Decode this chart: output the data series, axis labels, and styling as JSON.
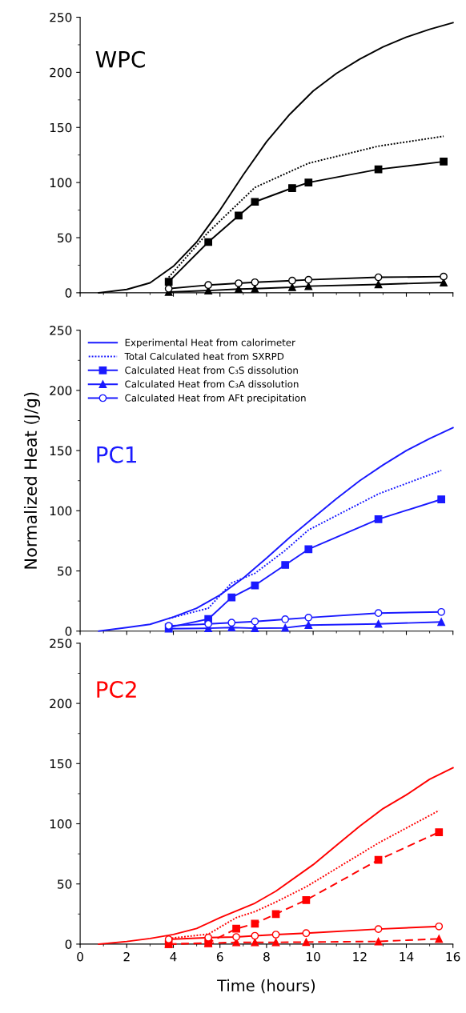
{
  "chart_data": [
    {
      "type": "line",
      "title": "WPC",
      "xlim": [
        0,
        16
      ],
      "ylim": [
        0,
        250
      ],
      "xticks": [
        0,
        2,
        4,
        6,
        8,
        10,
        12,
        14,
        16
      ],
      "yticks": [
        0,
        50,
        100,
        150,
        200,
        250
      ],
      "tick_labels": "y",
      "grid": false,
      "series": [
        {
          "color": "#000000",
          "line_style": "solid",
          "marker": "none",
          "x": [
            0.8,
            2,
            3,
            4,
            5,
            6,
            7,
            8,
            9,
            10,
            11,
            12,
            13,
            14,
            15,
            16
          ],
          "values": [
            0,
            3,
            9,
            24,
            46,
            75,
            107,
            137,
            162,
            183,
            199,
            212,
            223,
            232,
            239,
            245
          ]
        },
        {
          "color": "#000000",
          "line_style": "dotted",
          "marker": "none",
          "x": [
            3.8,
            5.5,
            7.5,
            9.8,
            12.8,
            15.6
          ],
          "values": [
            14,
            55,
            95.5,
            117.5,
            133,
            142
          ]
        },
        {
          "color": "#000000",
          "line_style": "solid",
          "marker": "square",
          "x": [
            3.8,
            5.5,
            6.8,
            7.5,
            9.1,
            9.8,
            12.8,
            15.6
          ],
          "values": [
            10,
            46,
            70,
            82.5,
            95,
            100,
            112,
            119
          ]
        },
        {
          "color": "#000000",
          "line_style": "solid",
          "marker": "triangle",
          "x": [
            3.8,
            5.5,
            6.8,
            7.5,
            9.1,
            9.8,
            12.8,
            15.6
          ],
          "values": [
            0.7,
            2,
            3.4,
            3.7,
            5,
            6,
            7.6,
            9.3
          ]
        },
        {
          "color": "#000000",
          "line_style": "solid",
          "marker": "circle",
          "x": [
            3.8,
            5.5,
            6.8,
            7.5,
            9.1,
            9.8,
            12.8,
            15.6
          ],
          "values": [
            3.7,
            7,
            8.6,
            9.5,
            11,
            11.8,
            14,
            14.7
          ]
        }
      ]
    },
    {
      "type": "line",
      "title": "PC1",
      "ylabel": "Normalized Heat (J/g)",
      "xlim": [
        0,
        16
      ],
      "ylim": [
        0,
        250
      ],
      "xticks": [
        0,
        2,
        4,
        6,
        8,
        10,
        12,
        14,
        16
      ],
      "yticks": [
        0,
        50,
        100,
        150,
        200,
        250
      ],
      "tick_labels": "y",
      "grid": false,
      "legend": "top left",
      "series": [
        {
          "name": "Experimental Heat from calorimeter",
          "color": "#1a1aff",
          "line_style": "solid",
          "marker": "none",
          "x": [
            0.8,
            2,
            3,
            4,
            5,
            6,
            7,
            8,
            9,
            10,
            11,
            12,
            13,
            14,
            15,
            16
          ],
          "values": [
            0,
            3,
            5.6,
            11.7,
            19,
            30,
            44,
            60.6,
            78,
            94,
            110,
            125,
            138,
            150,
            160,
            169
          ]
        },
        {
          "name": "Total Calculated heat from SXRPD",
          "color": "#1a1aff",
          "line_style": "dotted",
          "marker": "none",
          "x": [
            3.8,
            5.5,
            6.5,
            7.5,
            8.8,
            9.8,
            12.8,
            15.5
          ],
          "values": [
            10.5,
            19,
            40,
            48,
            67,
            84,
            114,
            133.5
          ]
        },
        {
          "name": "Calculated Heat from C₃S dissolution",
          "color": "#1a1aff",
          "line_style": "solid",
          "marker": "square",
          "x": [
            3.8,
            5.5,
            6.5,
            7.5,
            8.8,
            9.8,
            12.8,
            15.5
          ],
          "values": [
            3,
            10,
            28,
            38,
            55,
            68,
            93,
            109.5
          ]
        },
        {
          "name": "Calculated Heat from C₃A dissolution",
          "color": "#1a1aff",
          "line_style": "solid",
          "marker": "triangle",
          "x": [
            3.8,
            5.5,
            6.5,
            7.5,
            8.8,
            9.8,
            12.8,
            15.5
          ],
          "values": [
            2,
            2.4,
            3,
            2.4,
            2.7,
            5,
            6,
            7.6
          ]
        },
        {
          "name": "Calculated Heat from AFt precipitation",
          "color": "#1a1aff",
          "line_style": "solid",
          "marker": "circle",
          "x": [
            3.8,
            5.5,
            6.5,
            7.5,
            8.8,
            9.8,
            12.8,
            15.5
          ],
          "values": [
            4.4,
            5.9,
            7,
            8,
            9.8,
            11.2,
            15,
            15.9
          ]
        }
      ]
    },
    {
      "type": "line",
      "title": "PC2",
      "xlabel": "Time (hours)",
      "xlim": [
        0,
        16
      ],
      "ylim": [
        0,
        250
      ],
      "xticks": [
        0,
        2,
        4,
        6,
        8,
        10,
        12,
        14,
        16
      ],
      "yticks": [
        0,
        50,
        100,
        150,
        200,
        250
      ],
      "grid": false,
      "series": [
        {
          "color": "#ff0000",
          "line_style": "solid",
          "marker": "none",
          "x": [
            0.8,
            2,
            3,
            4,
            5,
            6,
            7,
            7.5,
            8.4,
            10,
            11,
            12,
            13,
            14,
            15,
            16
          ],
          "values": [
            0,
            2.2,
            4.7,
            8,
            13,
            22,
            30,
            34,
            44,
            66,
            82,
            98,
            112.6,
            124,
            137,
            146.5
          ]
        },
        {
          "color": "#ff0000",
          "line_style": "dotted",
          "marker": "none",
          "x": [
            3.8,
            5.5,
            6.7,
            7.5,
            8.4,
            9.7,
            12.8,
            15.4
          ],
          "values": [
            4.7,
            8.3,
            22,
            27,
            35,
            47.6,
            84,
            111
          ]
        },
        {
          "color": "#ff0000",
          "line_style": "dashed",
          "marker": "square",
          "x": [
            3.8,
            5.5,
            6.7,
            7.5,
            8.4,
            9.7,
            12.8,
            15.4
          ],
          "values": [
            0,
            1,
            12.8,
            17,
            25,
            36.6,
            70,
            93
          ]
        },
        {
          "color": "#ff0000",
          "line_style": "dashed",
          "marker": "triangle",
          "x": [
            3.8,
            5.5,
            6.7,
            7.5,
            8.4,
            9.7,
            12.8,
            15.4
          ],
          "values": [
            0,
            0.7,
            1.5,
            1.5,
            1.5,
            1.7,
            2.2,
            4.4
          ]
        },
        {
          "color": "#ff0000",
          "line_style": "solid",
          "marker": "circle",
          "x": [
            3.8,
            5.5,
            6.7,
            7.5,
            8.4,
            9.7,
            12.8,
            15.4
          ],
          "values": [
            3.9,
            5.4,
            5.9,
            6.9,
            7.9,
            9.1,
            12.5,
            14.7
          ]
        }
      ]
    }
  ]
}
